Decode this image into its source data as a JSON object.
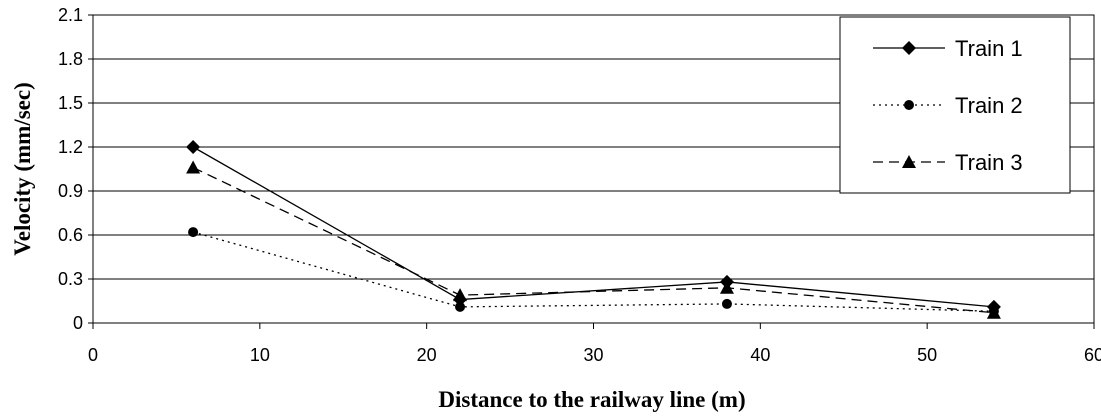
{
  "chart_data": {
    "type": "line",
    "title": "",
    "xlabel": "Distance to the railway line (m)",
    "ylabel": "Velocity (mm/sec)",
    "xlim": [
      0,
      60
    ],
    "ylim": [
      0,
      2.1
    ],
    "xticks": [
      "0",
      "10",
      "20",
      "30",
      "40",
      "50",
      "60"
    ],
    "yticks": [
      "0",
      "0.3",
      "0.6",
      "0.9",
      "1.2",
      "1.5",
      "1.8",
      "2.1"
    ],
    "grid": "horizontal",
    "legend_position": "top-right",
    "x": [
      6,
      22,
      38,
      54
    ],
    "series": [
      {
        "name": "Train 1",
        "marker": "diamond",
        "line": "solid",
        "values": [
          1.2,
          0.16,
          0.28,
          0.11
        ]
      },
      {
        "name": "Train 2",
        "marker": "circle",
        "line": "dotted",
        "values": [
          0.62,
          0.11,
          0.13,
          0.08
        ]
      },
      {
        "name": "Train 3",
        "marker": "triangle",
        "line": "dashed",
        "values": [
          1.06,
          0.19,
          0.24,
          0.07
        ]
      }
    ]
  }
}
